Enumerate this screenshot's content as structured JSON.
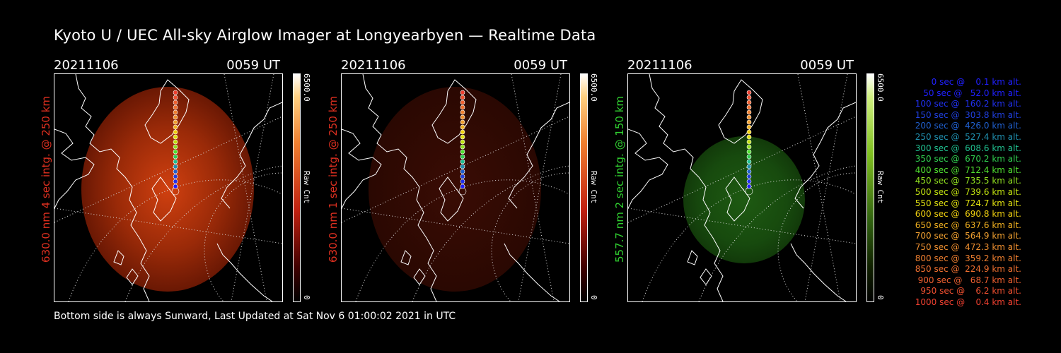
{
  "title": "Kyoto U / UEC All-sky Airglow Imager at Longyearbyen — Realtime Data",
  "panels": [
    {
      "date": "20211106",
      "time": "0059 UT",
      "ylabel": "630.0 nm 4 sec intg. @ 250 km",
      "label_color": "#e03020",
      "cbar_max": "6500.0",
      "cbar_min": "0",
      "cbar_unit": "Raw Cnt",
      "intensity": "high"
    },
    {
      "date": "20211106",
      "time": "0059 UT",
      "ylabel": "630.0 nm 1 sec intg. @ 250 km",
      "label_color": "#e03020",
      "cbar_max": "6500.0",
      "cbar_min": "0",
      "cbar_unit": "Raw Cnt",
      "intensity": "low"
    },
    {
      "date": "20211106",
      "time": "0059 UT",
      "ylabel": "557.7 nm 2 sec intg. @ 150 km",
      "label_color": "#30d030",
      "cbar_max": "6500.0",
      "cbar_min": "0",
      "cbar_unit": "Raw Cnt",
      "intensity": "green"
    }
  ],
  "footer": "Bottom side is always Sunward, Last Updated at Sat Nov  6 01:00:02 2021 in UTC",
  "legend": [
    {
      "text": "   0 sec @    0.1 km alt.",
      "color": "#2020ff"
    },
    {
      "text": "  50 sec @   52.0 km alt.",
      "color": "#2020ff"
    },
    {
      "text": " 100 sec @  160.2 km alt.",
      "color": "#2030f0"
    },
    {
      "text": " 150 sec @  303.8 km alt.",
      "color": "#2040e0"
    },
    {
      "text": " 200 sec @  426.0 km alt.",
      "color": "#2060d0"
    },
    {
      "text": " 250 sec @  527.4 km alt.",
      "color": "#2090b0"
    },
    {
      "text": " 300 sec @  608.6 km alt.",
      "color": "#20c090"
    },
    {
      "text": " 350 sec @  670.2 km alt.",
      "color": "#30d050"
    },
    {
      "text": " 400 sec @  712.4 km alt.",
      "color": "#50e030"
    },
    {
      "text": " 450 sec @  735.5 km alt.",
      "color": "#90e020"
    },
    {
      "text": " 500 sec @  739.6 km alt.",
      "color": "#c0e010"
    },
    {
      "text": " 550 sec @  724.7 km alt.",
      "color": "#e0e010"
    },
    {
      "text": " 600 sec @  690.8 km alt.",
      "color": "#f0d010"
    },
    {
      "text": " 650 sec @  637.6 km alt.",
      "color": "#f0b020"
    },
    {
      "text": " 700 sec @  564.9 km alt.",
      "color": "#f0a030"
    },
    {
      "text": " 750 sec @  472.3 km alt.",
      "color": "#f09030"
    },
    {
      "text": " 800 sec @  359.2 km alt.",
      "color": "#f08030"
    },
    {
      "text": " 850 sec @  224.9 km alt.",
      "color": "#f07030"
    },
    {
      "text": " 900 sec @   68.7 km alt.",
      "color": "#f06030"
    },
    {
      "text": " 950 sec @    6.2 km alt.",
      "color": "#f05030"
    },
    {
      "text": "1000 sec @    0.4 km alt.",
      "color": "#f04030"
    }
  ]
}
